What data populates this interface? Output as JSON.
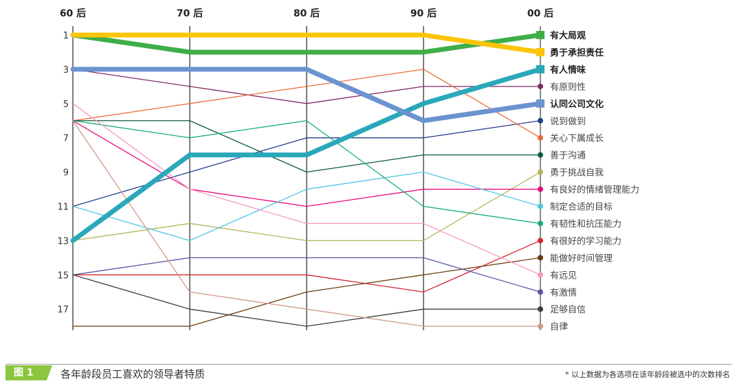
{
  "chart_data": {
    "type": "line",
    "subtype": "bump",
    "title": "各年龄段员工喜欢的领导者特质",
    "figure_label": "图 1",
    "note": "* 以上数据为各选项在该年龄段被选中的次数排名",
    "categories": [
      "60 后",
      "70 后",
      "80 后",
      "90 后",
      "00 后"
    ],
    "y_ticks": [
      "1",
      "3",
      "5",
      "7",
      "9",
      "11",
      "13",
      "15",
      "17"
    ],
    "y_tick_values": [
      1,
      3,
      5,
      7,
      9,
      11,
      13,
      15,
      17
    ],
    "ylim": [
      1,
      18
    ],
    "y_reversed": true,
    "series": [
      {
        "name": "有大局观",
        "values": [
          1,
          2,
          2,
          2,
          1
        ],
        "color": "#3fae49",
        "highlight": true
      },
      {
        "name": "勇于承担责任",
        "values": [
          1,
          1,
          1,
          1,
          2
        ],
        "color": "#fcc50b",
        "highlight": true
      },
      {
        "name": "有人情味",
        "values": [
          13,
          8,
          8,
          5,
          3
        ],
        "color": "#2aa8ba",
        "highlight": true
      },
      {
        "name": "有原则性",
        "values": [
          3,
          4,
          5,
          4,
          4
        ],
        "color": "#7e2a62",
        "highlight": false
      },
      {
        "name": "认同公司文化",
        "values": [
          3,
          3,
          3,
          6,
          5
        ],
        "color": "#6a93cf",
        "highlight": true
      },
      {
        "name": "说到做到",
        "values": [
          11,
          9,
          7,
          7,
          6
        ],
        "color": "#253f8f",
        "highlight": false
      },
      {
        "name": "关心下属成长",
        "values": [
          6,
          5,
          4,
          3,
          7
        ],
        "color": "#ec6a37",
        "highlight": false
      },
      {
        "name": "善于沟通",
        "values": [
          6,
          6,
          9,
          8,
          8
        ],
        "color": "#0b5a3a",
        "highlight": false
      },
      {
        "name": "勇于挑战自我",
        "values": [
          13,
          12,
          13,
          13,
          9
        ],
        "color": "#b2b659",
        "highlight": false
      },
      {
        "name": "有良好的情绪管理能力",
        "values": [
          6,
          10,
          11,
          10,
          10
        ],
        "color": "#e6097f",
        "highlight": false
      },
      {
        "name": "制定合适的目标",
        "values": [
          11,
          13,
          10,
          9,
          11
        ],
        "color": "#4ec6e2",
        "highlight": false
      },
      {
        "name": "有韧性和抗压能力",
        "values": [
          6,
          7,
          6,
          11,
          12
        ],
        "color": "#15ad7c",
        "highlight": false
      },
      {
        "name": "有很好的学习能力",
        "values": [
          15,
          15,
          15,
          16,
          13
        ],
        "color": "#d8232f",
        "highlight": false
      },
      {
        "name": "能做好时间管理",
        "values": [
          18,
          18,
          16,
          15,
          14
        ],
        "color": "#6a3b0b",
        "highlight": false
      },
      {
        "name": "有远见",
        "values": [
          5,
          10,
          12,
          12,
          15
        ],
        "color": "#f29bbf",
        "highlight": false
      },
      {
        "name": "有激情",
        "values": [
          15,
          14,
          14,
          14,
          16
        ],
        "color": "#5a55a5",
        "highlight": false
      },
      {
        "name": "足够自信",
        "values": [
          15,
          17,
          18,
          17,
          17
        ],
        "color": "#3c3c3c",
        "highlight": false
      },
      {
        "name": "自律",
        "values": [
          6,
          16,
          17,
          18,
          18
        ],
        "color": "#d29a8a",
        "highlight": false
      }
    ]
  }
}
